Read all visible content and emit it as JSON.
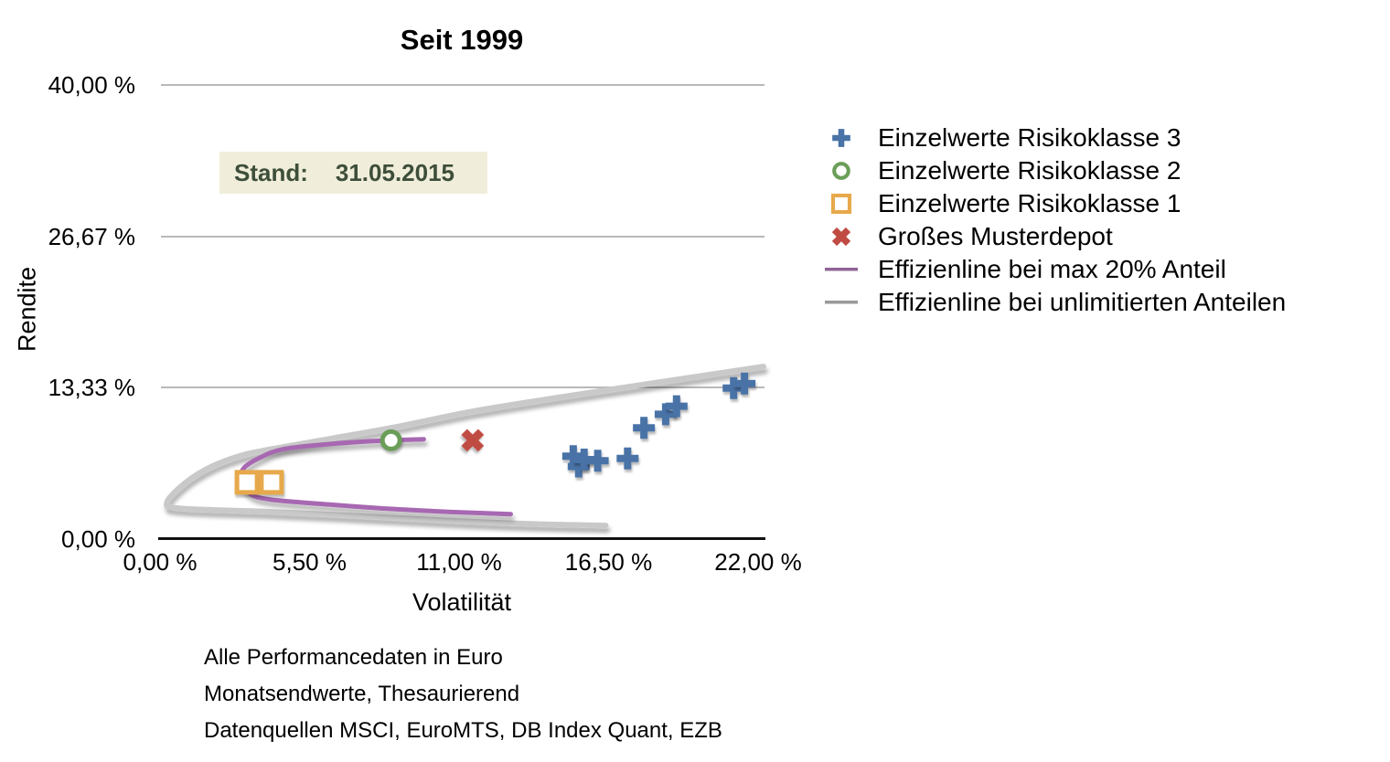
{
  "title": "Seit 1999",
  "stand": {
    "label": "Stand:",
    "date": "31.05.2015"
  },
  "axes": {
    "y_label": "Rendite",
    "x_label": "Volatilität"
  },
  "legend": [
    {
      "marker": "plus",
      "color": "#4a73a7",
      "label": "Einzelwerte Risikoklasse 3"
    },
    {
      "marker": "circle",
      "color": "#6b9e59",
      "label": "Einzelwerte Risikoklasse 2"
    },
    {
      "marker": "square",
      "color": "#e7a94b",
      "label": "Einzelwerte Risikoklasse 1"
    },
    {
      "marker": "x",
      "color": "#c04b43",
      "label": "Großes Musterdepot"
    },
    {
      "marker": "line",
      "color": "#8f6496",
      "label": "Effizienline bei max 20% Anteil"
    },
    {
      "marker": "line",
      "color": "#9a9a9a",
      "label": "Effizienline bei unlimitierten Anteilen"
    }
  ],
  "footnotes": [
    "Alle Performancedaten in Euro",
    "Monatsendwerte, Thesaurierend",
    "Datenquellen MSCI, EuroMTS, DB Index Quant, EZB"
  ],
  "chart_data": {
    "type": "scatter",
    "title": "Seit 1999",
    "xlabel": "Volatilität",
    "ylabel": "Rendite",
    "xlim": [
      0,
      22
    ],
    "ylim": [
      0,
      40
    ],
    "grid": "horizontal",
    "legend_position": "right",
    "x_ticks": [
      {
        "value": 0,
        "label": "0,00 %"
      },
      {
        "value": 5.5,
        "label": "5,50 %"
      },
      {
        "value": 11,
        "label": "11,00 %"
      },
      {
        "value": 16.5,
        "label": "16,50 %"
      },
      {
        "value": 22,
        "label": "22,00 %"
      }
    ],
    "y_ticks": [
      {
        "value": 40,
        "label": "40,00 %"
      },
      {
        "value": 26.67,
        "label": "26,67 %"
      },
      {
        "value": 13.33,
        "label": "13,33 %"
      },
      {
        "value": 0,
        "label": "0,00 %"
      }
    ],
    "series": [
      {
        "name": "Einzelwerte Risikoklasse 3",
        "kind": "scatter",
        "marker": "plus",
        "color": "#4a73a7",
        "points": [
          [
            15.2,
            7.3
          ],
          [
            15.4,
            6.4
          ],
          [
            15.6,
            7.0
          ],
          [
            16.1,
            6.9
          ],
          [
            17.2,
            7.1
          ],
          [
            17.8,
            9.8
          ],
          [
            18.6,
            11.0
          ],
          [
            19.0,
            11.7
          ],
          [
            21.1,
            13.3
          ],
          [
            21.5,
            13.7
          ]
        ]
      },
      {
        "name": "Einzelwerte Risikoklasse 2",
        "kind": "scatter",
        "marker": "circle",
        "color": "#6b9e59",
        "points": [
          [
            8.5,
            8.7
          ]
        ]
      },
      {
        "name": "Einzelwerte Risikoklasse 1",
        "kind": "scatter",
        "marker": "square",
        "color": "#e7a94b",
        "points": [
          [
            3.2,
            5.0
          ],
          [
            4.1,
            5.0
          ]
        ]
      },
      {
        "name": "Großes Musterdepot",
        "kind": "scatter",
        "marker": "x",
        "color": "#c04b43",
        "points": [
          [
            11.5,
            8.7
          ]
        ]
      },
      {
        "name": "Effizienline bei max 20% Anteil",
        "kind": "line",
        "color": "#a768b2",
        "points": [
          [
            9.7,
            8.8
          ],
          [
            7.6,
            8.6
          ],
          [
            5.9,
            8.3
          ],
          [
            4.5,
            7.9
          ],
          [
            3.7,
            7.2
          ],
          [
            3.1,
            6.3
          ],
          [
            2.95,
            5.2
          ],
          [
            3.3,
            4.0
          ],
          [
            4.0,
            3.5
          ],
          [
            5.9,
            3.1
          ],
          [
            8.2,
            2.7
          ],
          [
            10.6,
            2.4
          ],
          [
            12.9,
            2.2
          ]
        ]
      },
      {
        "name": "Effizienline bei unlimitierten Anteilen",
        "kind": "line",
        "color": "#c9c9c9",
        "points": [
          [
            22.2,
            15.2
          ],
          [
            18.3,
            13.8
          ],
          [
            15.0,
            12.6
          ],
          [
            11.6,
            11.3
          ],
          [
            8.5,
            9.8
          ],
          [
            5.2,
            8.4
          ],
          [
            3.2,
            7.5
          ],
          [
            1.9,
            6.4
          ],
          [
            0.9,
            4.9
          ],
          [
            0.25,
            3.2
          ],
          [
            0.8,
            2.7
          ],
          [
            4.2,
            2.4
          ],
          [
            7.6,
            2.0
          ],
          [
            10.9,
            1.6
          ],
          [
            13.6,
            1.35
          ],
          [
            16.4,
            1.2
          ]
        ]
      }
    ]
  }
}
